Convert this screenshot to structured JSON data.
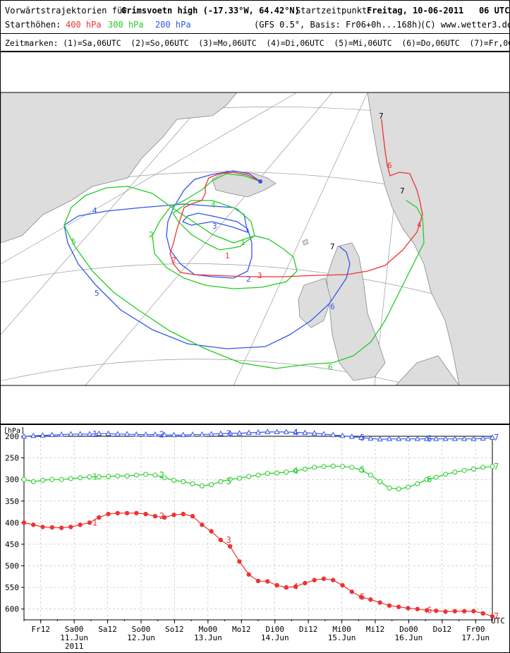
{
  "header": {
    "title_prefix": "Vorwärtstrajektorien für",
    "location": "Grimsvoetn high (-17.33°W, 64.42°N)",
    "start_label": "Startzeitpunkt:",
    "start_time": "Freitag, 10-06-2011   06 UTC",
    "heights_label": "Starthöhen:",
    "height_400": "400 hPa",
    "height_300": "300 hPa",
    "height_200": "200 hPa",
    "model": "(GFS 0.5°, Basis: Fr06+0h...168h)",
    "copyright": "(C) www.wetter3.de",
    "markers": "Zeitmarken: (1)=Sa,06UTC  (2)=So,06UTC  (3)=Mo,06UTC  (4)=Di,06UTC  (5)=Mi,06UTC  (6)=Do,06UTC  (7)=Fr,06UTC"
  },
  "colors": {
    "p400": "#ee3333",
    "p300": "#22cc22",
    "p200": "#3355ee",
    "land": "#dddddd",
    "sea": "#ffffff",
    "grid": "#999999"
  },
  "chart_data": {
    "type": "line",
    "title": "",
    "ylabel": "[hPa]",
    "y_reversed": true,
    "ylim": [
      200,
      625
    ],
    "yticks": [
      200,
      250,
      300,
      350,
      400,
      450,
      500,
      550,
      600
    ],
    "x_unit": "UTC",
    "x_start": "Fr 10 Jun 2011 06UTC",
    "x_end": "Fr 17 Jun 2011 06UTC",
    "x_step_hours": 6,
    "xticks": [
      {
        "t": 6,
        "label": "Fr12",
        "sub": ""
      },
      {
        "t": 18,
        "label": "Sa00",
        "sub": "11.Jun"
      },
      {
        "t": 30,
        "label": "Sa12",
        "sub": ""
      },
      {
        "t": 42,
        "label": "So00",
        "sub": "12.Jun"
      },
      {
        "t": 54,
        "label": "So12",
        "sub": ""
      },
      {
        "t": 66,
        "label": "Mo00",
        "sub": "13.Jun"
      },
      {
        "t": 78,
        "label": "Mo12",
        "sub": ""
      },
      {
        "t": 90,
        "label": "Di00",
        "sub": "14.Jun"
      },
      {
        "t": 102,
        "label": "Di12",
        "sub": ""
      },
      {
        "t": 114,
        "label": "Mi00",
        "sub": "15.Jun"
      },
      {
        "t": 126,
        "label": "Mi12",
        "sub": ""
      },
      {
        "t": 138,
        "label": "Do00",
        "sub": "16.Jun"
      },
      {
        "t": 150,
        "label": "Do12",
        "sub": ""
      },
      {
        "t": 162,
        "label": "Fr00",
        "sub": "17.Jun"
      }
    ],
    "year_label": "2011",
    "series": [
      {
        "name": "400 hPa",
        "color": "#ee3333",
        "marker": "dot",
        "values": [
          400,
          405,
          410,
          411,
          412,
          410,
          405,
          400,
          388,
          380,
          378,
          378,
          378,
          380,
          385,
          388,
          382,
          380,
          385,
          405,
          420,
          440,
          455,
          490,
          520,
          535,
          536,
          545,
          550,
          548,
          540,
          533,
          530,
          533,
          545,
          560,
          572,
          578,
          585,
          592,
          595,
          598,
          600,
          603,
          604,
          606,
          605,
          605,
          605,
          610,
          617
        ]
      },
      {
        "name": "300 hPa",
        "color": "#22cc22",
        "marker": "circle",
        "values": [
          300,
          305,
          302,
          300,
          300,
          298,
          296,
          294,
          294,
          293,
          292,
          292,
          290,
          288,
          290,
          296,
          302,
          305,
          310,
          315,
          312,
          305,
          300,
          297,
          293,
          290,
          286,
          285,
          283,
          280,
          276,
          272,
          270,
          269,
          270,
          272,
          278,
          290,
          305,
          320,
          322,
          318,
          310,
          300,
          295,
          288,
          283,
          279,
          276,
          272,
          270
        ]
      },
      {
        "name": "200 hPa",
        "color": "#3355ee",
        "marker": "triangle",
        "values": [
          200,
          199,
          198,
          197,
          196,
          195,
          195,
          195,
          194,
          194,
          195,
          195,
          196,
          196,
          196,
          197,
          197,
          197,
          196,
          196,
          195,
          194,
          193,
          193,
          192,
          191,
          190,
          190,
          190,
          191,
          192,
          193,
          195,
          197,
          199,
          201,
          203,
          205,
          207,
          206,
          206,
          206,
          206,
          206,
          206,
          206,
          206,
          206,
          206,
          205,
          203
        ]
      }
    ],
    "time_markers": [
      {
        "label": "1",
        "t": 24
      },
      {
        "label": "2",
        "t": 48
      },
      {
        "label": "3",
        "t": 72
      },
      {
        "label": "4",
        "t": 96
      },
      {
        "label": "5",
        "t": 120
      },
      {
        "label": "6",
        "t": 144
      },
      {
        "label": "7",
        "t": 168
      }
    ]
  }
}
